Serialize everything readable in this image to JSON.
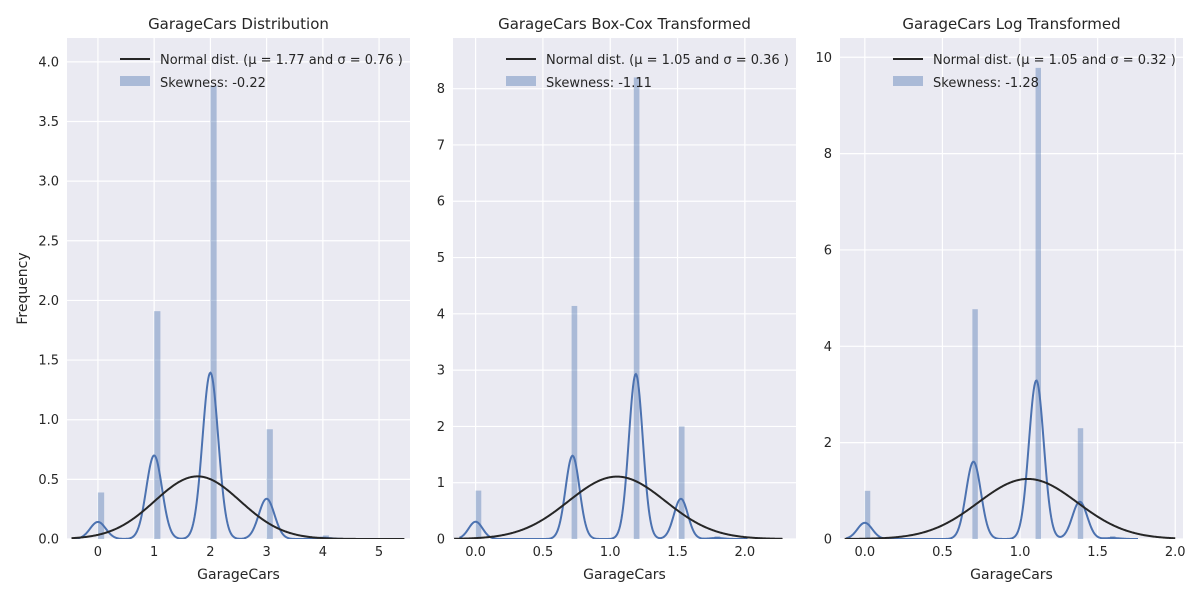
{
  "colors": {
    "kde": "#4c72b0",
    "normal": "#262626",
    "background": "#eaeaf2",
    "grid": "#ffffff"
  },
  "chart_data": [
    {
      "type": "histogram",
      "title": "GarageCars Distribution",
      "xlabel": "GarageCars",
      "ylabel": "Frequency",
      "xlim": [
        -0.55,
        5.55
      ],
      "ylim": [
        0,
        4.2
      ],
      "xticks": [
        0,
        1,
        2,
        3,
        4,
        5
      ],
      "xtick_labels": [
        "0",
        "1",
        "2",
        "3",
        "4",
        "5"
      ],
      "yticks": [
        0,
        0.5,
        1,
        1.5,
        2,
        2.5,
        3,
        3.5,
        4
      ],
      "ytick_labels": [
        "0.0",
        "0.5",
        "1.0",
        "1.5",
        "2.0",
        "2.5",
        "3.0",
        "3.5",
        "4.0"
      ],
      "bins": [
        {
          "x0": 0.0,
          "x1": 0.111,
          "value": 0.39
        },
        {
          "x0": 1.0,
          "x1": 1.111,
          "value": 1.91
        },
        {
          "x0": 2.0,
          "x1": 2.111,
          "value": 3.8
        },
        {
          "x0": 3.0,
          "x1": 3.111,
          "value": 0.92
        },
        {
          "x0": 4.0,
          "x1": 4.111,
          "value": 0.03
        }
      ],
      "kde": {
        "bandwidth": 0.14,
        "peaks": [
          [
            0.0,
            0.39
          ],
          [
            1.0,
            1.91
          ],
          [
            2.0,
            3.8
          ],
          [
            3.0,
            0.92
          ],
          [
            4.0,
            0.03
          ]
        ],
        "x_range": [
          -0.45,
          4.45
        ],
        "scale": 0.3667
      },
      "normal": {
        "mu": 1.77,
        "sigma": 0.76,
        "x_range": [
          -0.47,
          5.45
        ]
      },
      "legend": {
        "position": "upper right",
        "normal_label": "Normal dist. (μ =  1.77 and σ =  0.76 )",
        "hist_label": "Skewness: -0.22"
      }
    },
    {
      "type": "histogram",
      "title": "GarageCars Box-Cox Transformed",
      "xlabel": "GarageCars",
      "ylabel": "",
      "xlim": [
        -0.168,
        2.38
      ],
      "ylim": [
        0,
        8.9
      ],
      "xticks": [
        0,
        0.5,
        1,
        1.5,
        2
      ],
      "xtick_labels": [
        "0.0",
        "0.5",
        "1.0",
        "1.5",
        "2.0"
      ],
      "yticks": [
        0,
        1,
        2,
        3,
        4,
        5,
        6,
        7,
        8
      ],
      "ytick_labels": [
        "0",
        "1",
        "2",
        "3",
        "4",
        "5",
        "6",
        "7",
        "8"
      ],
      "bins": [
        {
          "x0": 0.0,
          "x1": 0.042,
          "value": 0.86
        },
        {
          "x0": 0.713,
          "x1": 0.755,
          "value": 4.14
        },
        {
          "x0": 1.175,
          "x1": 1.217,
          "value": 8.2
        },
        {
          "x0": 1.51,
          "x1": 1.552,
          "value": 2.0
        },
        {
          "x0": 1.775,
          "x1": 1.817,
          "value": 0.05
        }
      ],
      "kde": {
        "bandwidth": 0.052,
        "peaks": [
          [
            0.0,
            0.86
          ],
          [
            0.72,
            4.14
          ],
          [
            1.19,
            8.2
          ],
          [
            1.525,
            2.0
          ],
          [
            1.79,
            0.05
          ]
        ],
        "x_range": [
          -0.12,
          2.02
        ],
        "scale": 0.3573
      },
      "normal": {
        "mu": 1.05,
        "sigma": 0.36,
        "x_range": [
          -0.16,
          2.28
        ]
      },
      "legend": {
        "position": "upper right",
        "normal_label": "Normal dist. (μ =  1.05 and σ =  0.36 )",
        "hist_label": "Skewness: -1.11"
      }
    },
    {
      "type": "histogram",
      "title": "GarageCars Log Transformed",
      "xlabel": "GarageCars",
      "ylabel": "",
      "xlim": [
        -0.16,
        2.05
      ],
      "ylim": [
        0,
        10.4
      ],
      "xticks": [
        0,
        0.5,
        1,
        1.5,
        2
      ],
      "xtick_labels": [
        "0.0",
        "0.5",
        "1.0",
        "1.5",
        "2.0"
      ],
      "yticks": [
        0,
        2,
        4,
        6,
        8,
        10
      ],
      "ytick_labels": [
        "0",
        "2",
        "4",
        "6",
        "8",
        "10"
      ],
      "bins": [
        {
          "x0": 0.0,
          "x1": 0.035,
          "value": 1.0
        },
        {
          "x0": 0.693,
          "x1": 0.728,
          "value": 4.77
        },
        {
          "x0": 1.1,
          "x1": 1.135,
          "value": 9.78
        },
        {
          "x0": 1.372,
          "x1": 1.407,
          "value": 2.3
        },
        {
          "x0": 1.58,
          "x1": 1.615,
          "value": 0.06
        }
      ],
      "kde": {
        "bandwidth": 0.048,
        "peaks": [
          [
            0.0,
            1.0
          ],
          [
            0.7,
            4.77
          ],
          [
            1.105,
            9.78
          ],
          [
            1.385,
            2.3
          ],
          [
            1.595,
            0.06
          ]
        ],
        "x_range": [
          -0.12,
          1.76
        ],
        "scale": 0.3364
      },
      "normal": {
        "mu": 1.05,
        "sigma": 0.32,
        "x_range": [
          -0.13,
          2.0
        ]
      },
      "legend": {
        "position": "upper right",
        "normal_label": "Normal dist. (μ =  1.05 and σ =  0.32 )",
        "hist_label": "Skewness: -1.28"
      }
    }
  ]
}
